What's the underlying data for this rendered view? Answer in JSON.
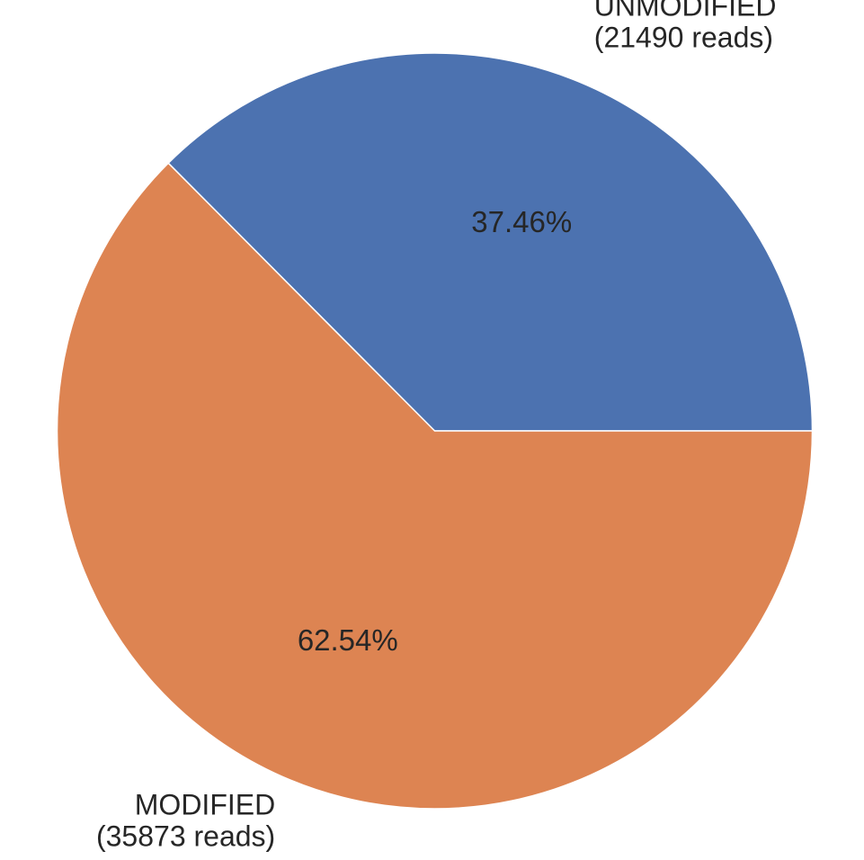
{
  "chart_data": {
    "type": "pie",
    "title": "",
    "slices": [
      {
        "label": "UNMODIFIED",
        "reads_text": "(21490 reads)",
        "value": 21490,
        "percent_text": "37.46%",
        "color": "#4c72b0"
      },
      {
        "label": "MODIFIED",
        "reads_text": "(35873 reads)",
        "value": 35873,
        "percent_text": "62.54%",
        "color": "#dd8452"
      }
    ],
    "start_angle_deg": 0,
    "direction": "counterclockwise",
    "legend": "none"
  }
}
